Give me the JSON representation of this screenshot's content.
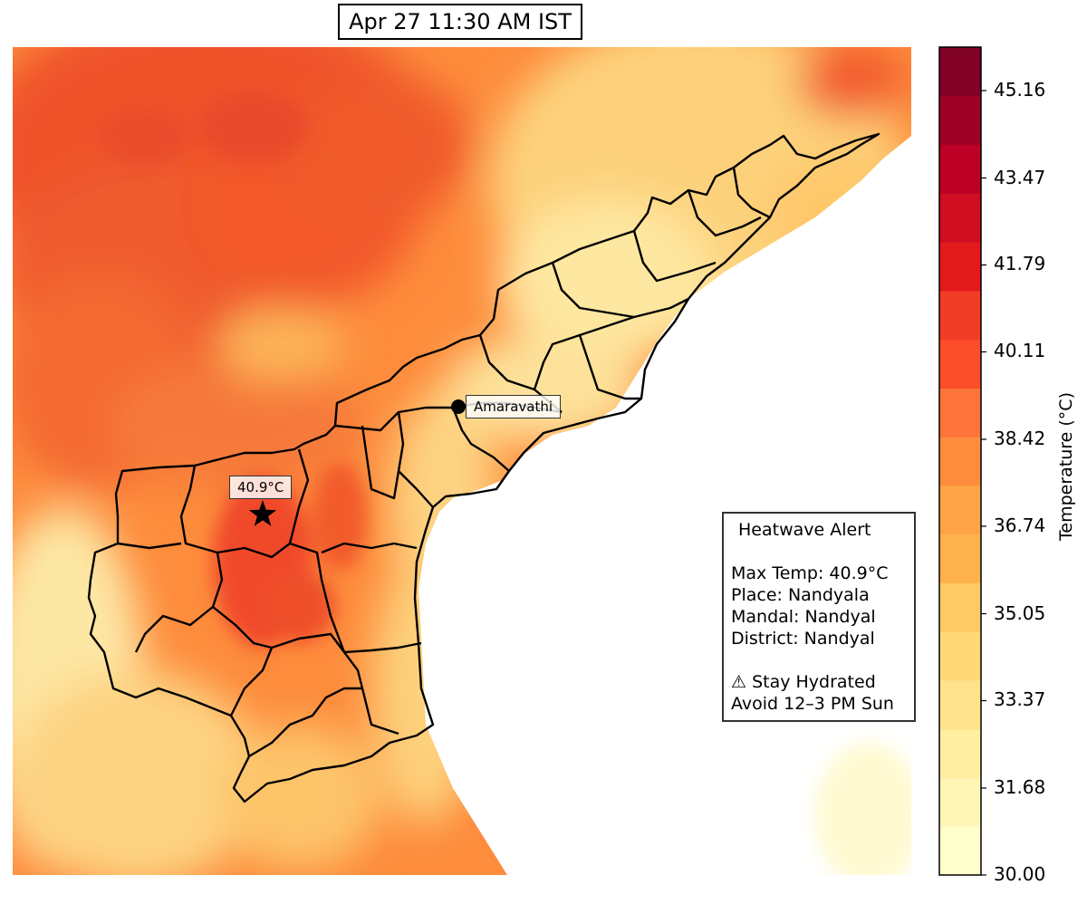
{
  "title": "Apr 27 11:30 AM IST",
  "colorbar": {
    "label": "Temperature (°C)",
    "min": 30.0,
    "max": 46.0,
    "ticks": [
      "30.00",
      "31.68",
      "33.37",
      "35.05",
      "36.74",
      "38.42",
      "40.11",
      "41.79",
      "43.47",
      "45.16"
    ],
    "colors": [
      "#ffffcc",
      "#fff5b6",
      "#ffeda0",
      "#fee38c",
      "#fed976",
      "#feca66",
      "#feb24c",
      "#fea446",
      "#fd8d3c",
      "#fd743a",
      "#fc4e2a",
      "#f23d26",
      "#e31a1c",
      "#d00d21",
      "#bd0026",
      "#9f0026",
      "#800026"
    ]
  },
  "markers": {
    "capital": {
      "label": "Amaravathi"
    },
    "max_temp": {
      "label": "40.9°C"
    }
  },
  "alert": {
    "title": "Heatwave Alert",
    "max_temp_line": "Max Temp: 40.9°C",
    "place_line": "Place: Nandyala",
    "mandal_line": "Mandal: Nandyal",
    "district_line": "District: Nandyal",
    "warning_line": "⚠ Stay Hydrated",
    "advice_line": "Avoid 12–3 PM Sun"
  }
}
